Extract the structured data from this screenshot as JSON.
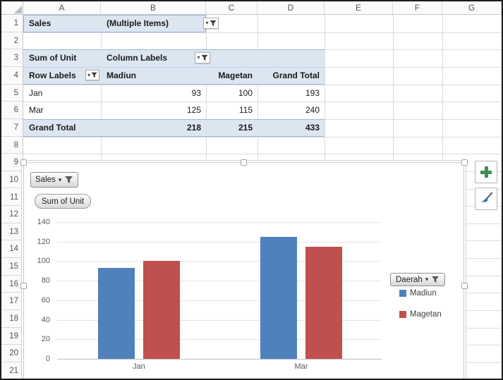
{
  "sheet": {
    "column_headers": [
      "A",
      "B",
      "C",
      "D",
      "E",
      "F",
      "G"
    ],
    "row_headers": [
      "1",
      "2",
      "3",
      "4",
      "5",
      "6",
      "7",
      "8",
      "9",
      "10",
      "11",
      "12",
      "13",
      "14",
      "15",
      "16",
      "17",
      "18",
      "19",
      "20",
      "21"
    ],
    "pivot": {
      "report_filter_label": "Sales",
      "report_filter_value": "(Multiple Items)",
      "value_field": "Sum of Unit",
      "column_labels": "Column Labels",
      "row_labels": "Row Labels",
      "column_headers": [
        "Madiun",
        "Magetan",
        "Grand Total"
      ],
      "rows": [
        {
          "label": "Jan",
          "values": [
            "93",
            "100",
            "193"
          ]
        },
        {
          "label": "Mar",
          "values": [
            "125",
            "115",
            "240"
          ]
        }
      ],
      "grand_total": {
        "label": "Grand Total",
        "values": [
          "218",
          "215",
          "433"
        ]
      }
    }
  },
  "chart": {
    "filter_button": "Sales",
    "value_button": "Sum of Unit",
    "legend_button": "Daerah",
    "chart_data": {
      "type": "bar",
      "categories": [
        "Jan",
        "Mar"
      ],
      "series": [
        {
          "name": "Madiun",
          "color": "#4F81BD",
          "values": [
            93,
            125
          ]
        },
        {
          "name": "Magetan",
          "color": "#C0504D",
          "values": [
            100,
            115
          ]
        }
      ],
      "y_ticks": [
        0,
        20,
        40,
        60,
        80,
        100,
        120,
        140
      ],
      "ylim": [
        0,
        140
      ],
      "grid": true,
      "legend_position": "right"
    }
  },
  "icons": {
    "dropdown_caret": "▾"
  },
  "colors": {
    "bar_blue": "#4F81BD",
    "bar_red": "#C0504D",
    "pivot_fill": "#DCE6F1",
    "pivot_border": "#9EB6D9",
    "plus_green": "#3E8E57",
    "brush_blue": "#2E75B6"
  }
}
